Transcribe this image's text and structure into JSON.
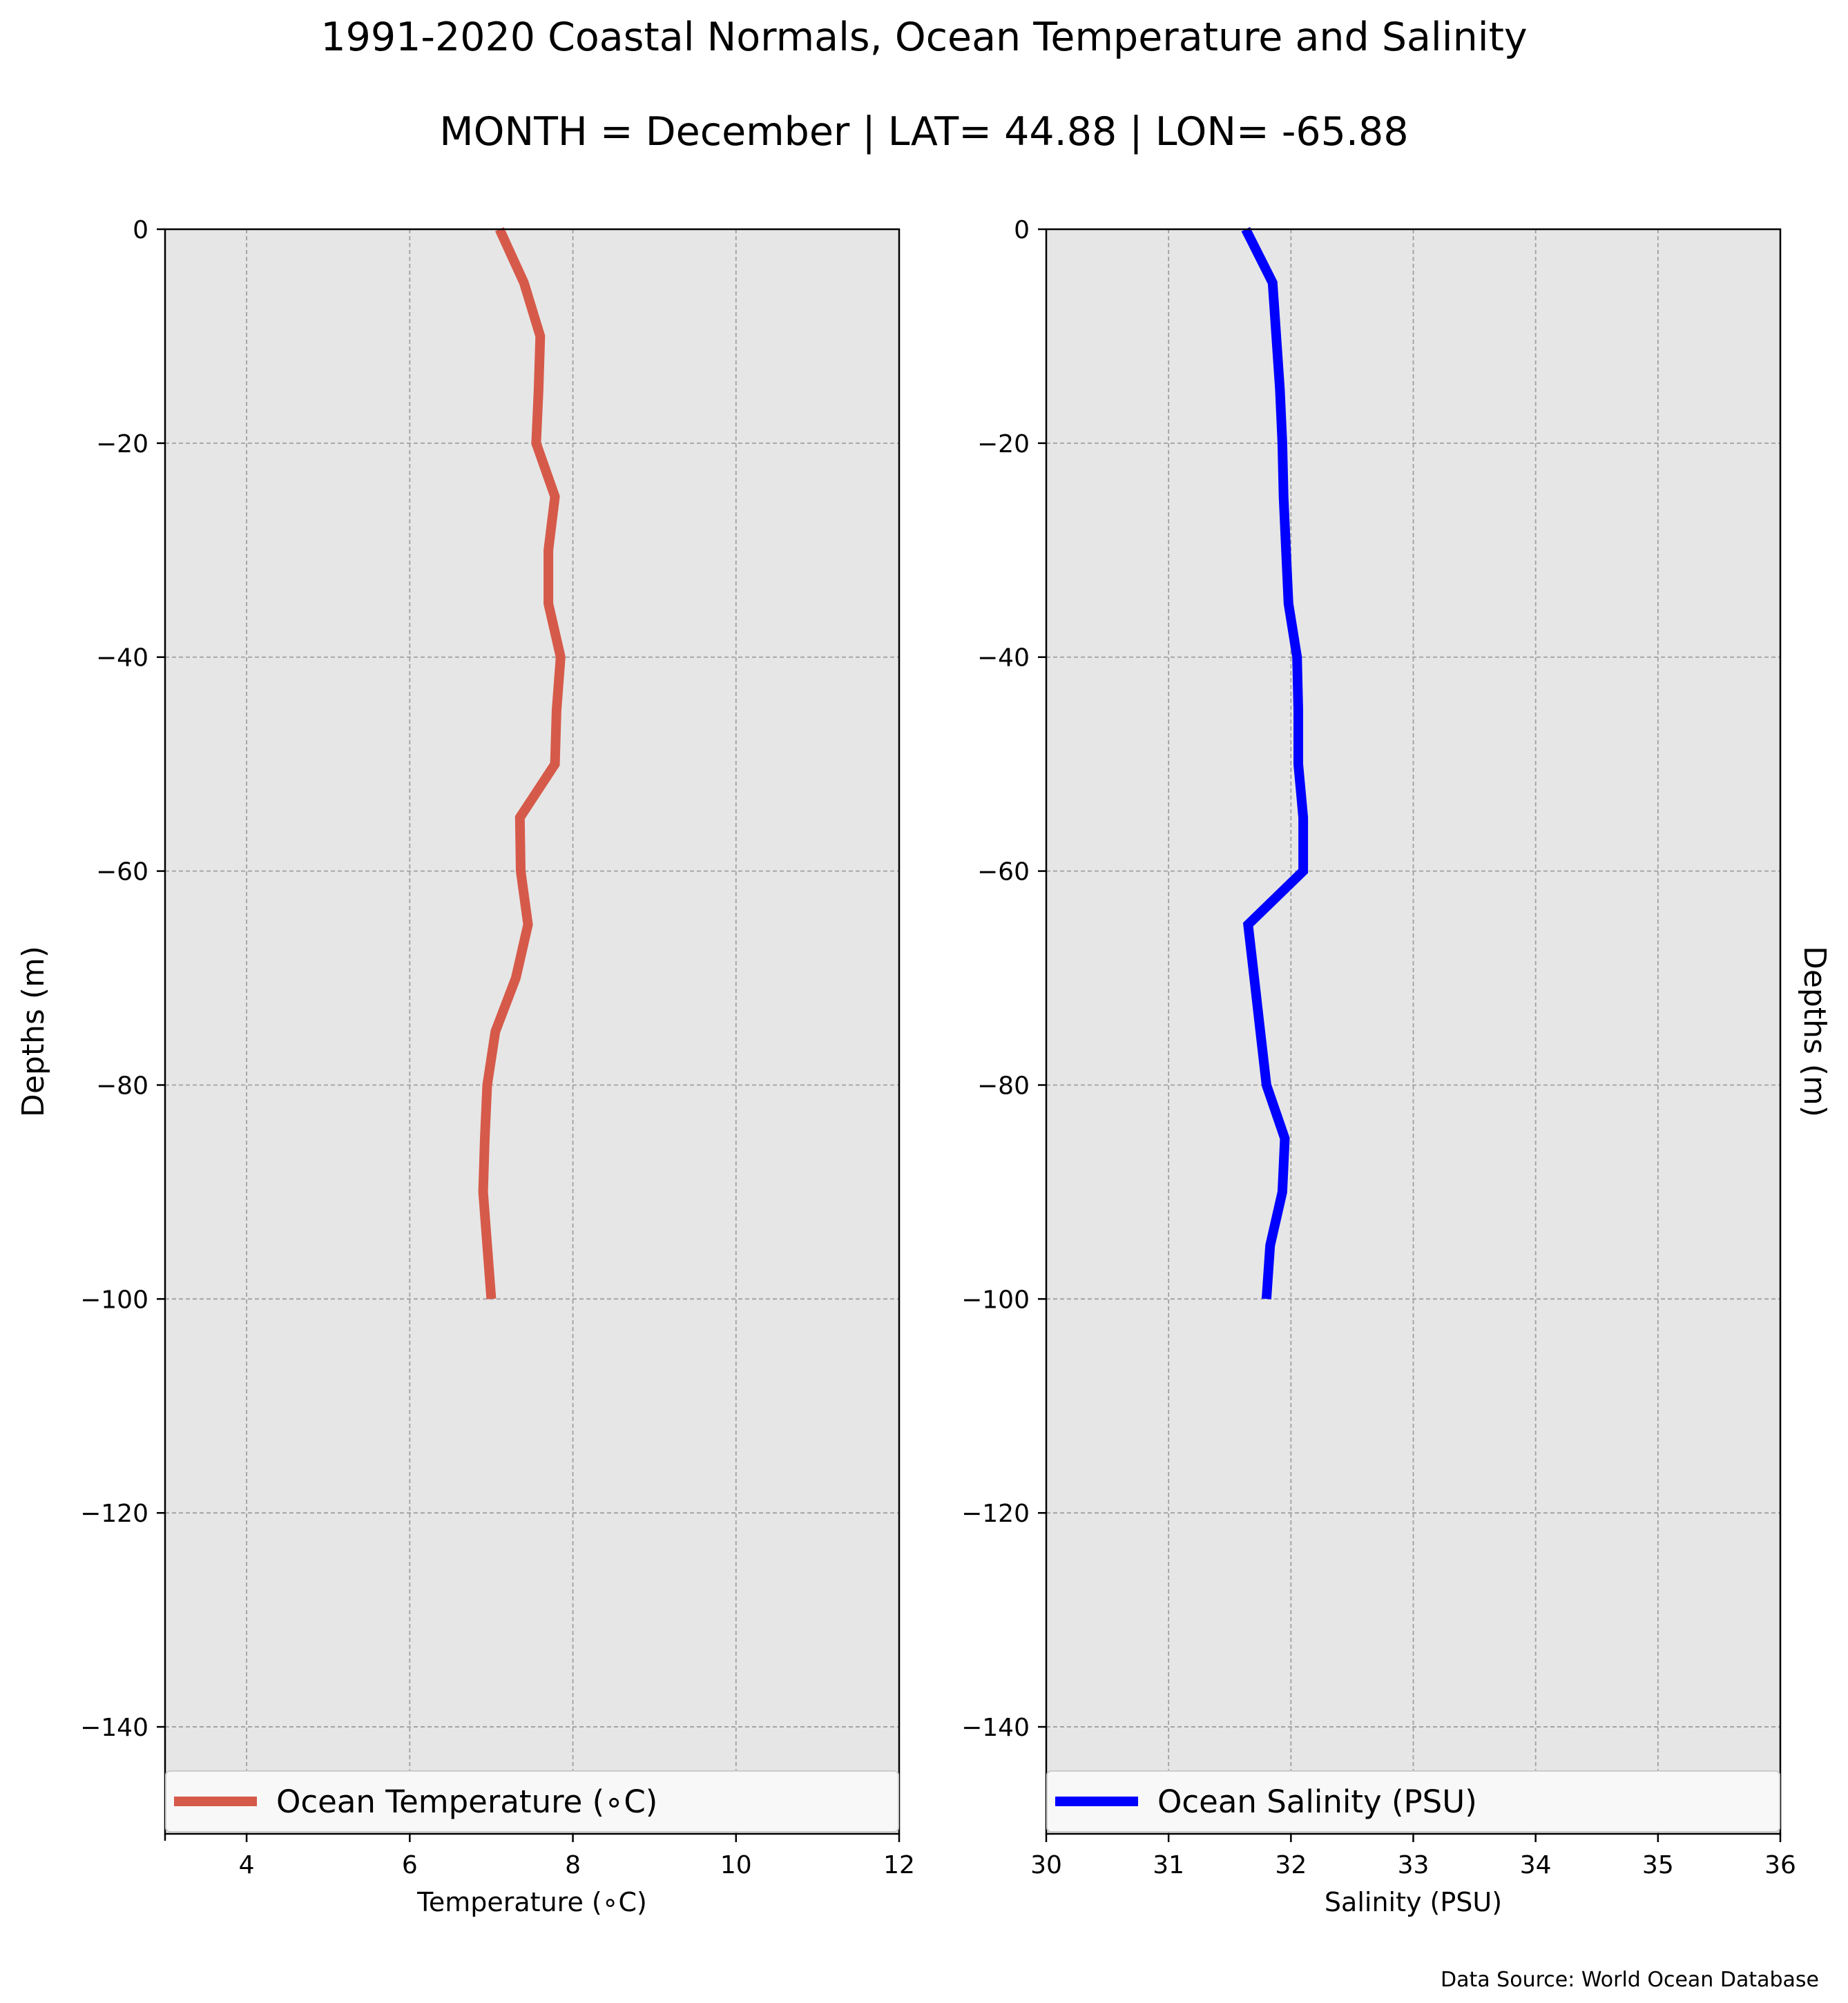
{
  "title": "1991-2020 Coastal Normals, Ocean Temperature and Salinity",
  "subtitle": "MONTH = December | LAT= 44.88 | LON= -65.88",
  "source_note": "Data Source: World Ocean Database",
  "chart_data": [
    {
      "type": "line",
      "orientation": "vertical-profile",
      "xlabel": "Temperature (∘C)",
      "ylabel": "Depths (m)",
      "ylabel_side": "left",
      "xlim": [
        3,
        12
      ],
      "ylim": [
        -150,
        0
      ],
      "xticks": [
        4,
        6,
        8,
        10,
        12
      ],
      "yticks": [
        0,
        -20,
        -40,
        -60,
        -80,
        -100,
        -120,
        -140
      ],
      "grid": true,
      "legend_placement": "lower-center",
      "series": [
        {
          "name": "Ocean Temperature (∘C)",
          "color": "#d65a4a",
          "depth": [
            0,
            -5,
            -10,
            -15,
            -20,
            -25,
            -30,
            -35,
            -40,
            -45,
            -50,
            -55,
            -60,
            -65,
            -70,
            -75,
            -80,
            -85,
            -90,
            -95,
            -100
          ],
          "x": [
            7.1,
            7.4,
            7.6,
            7.58,
            7.55,
            7.78,
            7.7,
            7.7,
            7.85,
            7.8,
            7.78,
            7.35,
            7.36,
            7.45,
            7.3,
            7.05,
            6.95,
            6.92,
            6.9,
            6.95,
            7.0
          ]
        }
      ]
    },
    {
      "type": "line",
      "orientation": "vertical-profile",
      "xlabel": "Salinity (PSU)",
      "ylabel": "Depths (m)",
      "ylabel_side": "right",
      "xlim": [
        30,
        36
      ],
      "ylim": [
        -150,
        0
      ],
      "xticks": [
        30,
        31,
        32,
        33,
        34,
        35,
        36
      ],
      "yticks": [
        0,
        -20,
        -40,
        -60,
        -80,
        -100,
        -120,
        -140
      ],
      "grid": true,
      "legend_placement": "lower-center",
      "series": [
        {
          "name": "Ocean Salinity (PSU)",
          "color": "#0000ff",
          "depth": [
            0,
            -5,
            -10,
            -15,
            -20,
            -25,
            -30,
            -35,
            -40,
            -45,
            -50,
            -55,
            -60,
            -65,
            -70,
            -75,
            -80,
            -85,
            -90,
            -95,
            -100
          ],
          "x": [
            31.63,
            31.85,
            31.88,
            31.91,
            31.93,
            31.94,
            31.96,
            31.98,
            32.05,
            32.06,
            32.06,
            32.1,
            32.1,
            31.65,
            31.7,
            31.75,
            31.8,
            31.95,
            31.93,
            31.83,
            31.8
          ]
        }
      ]
    }
  ]
}
